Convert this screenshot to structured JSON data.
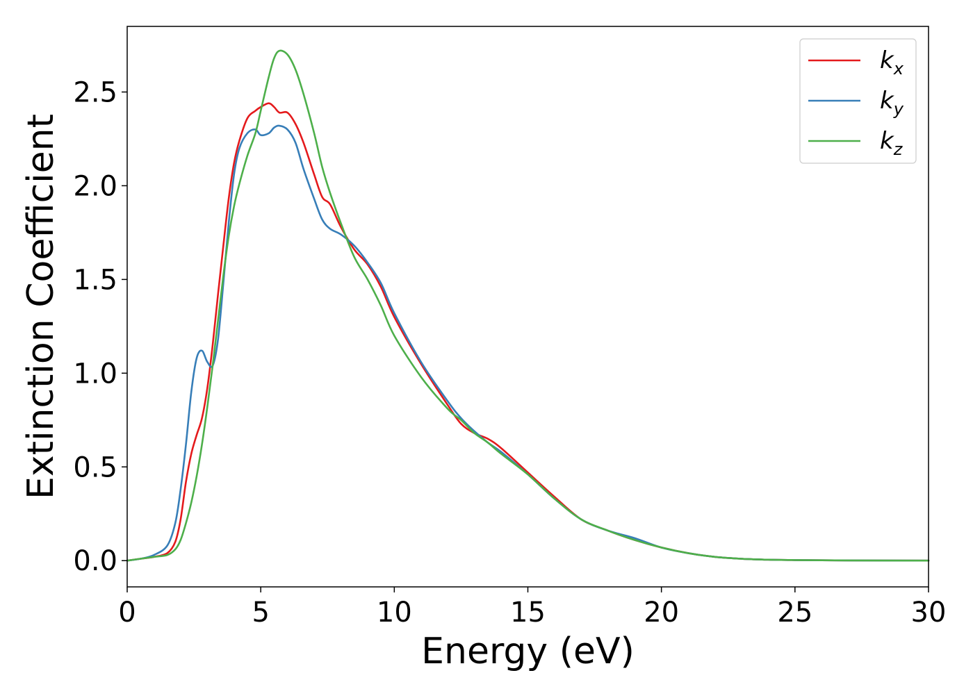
{
  "chart_data": {
    "type": "line",
    "xlabel": "Energy (eV)",
    "ylabel": "Extinction Coefficient",
    "xlim": [
      0,
      30
    ],
    "ylim": [
      -0.14,
      2.85
    ],
    "xticks": [
      0,
      5,
      10,
      15,
      20,
      25,
      30
    ],
    "yticks": [
      0.0,
      0.5,
      1.0,
      1.5,
      2.0,
      2.5
    ],
    "xtick_labels": [
      "0",
      "5",
      "10",
      "15",
      "20",
      "25",
      "30"
    ],
    "ytick_labels": [
      "0.0",
      "0.5",
      "1.0",
      "1.5",
      "2.0",
      "2.5"
    ],
    "grid": false,
    "legend": {
      "position": "top-right",
      "entries": [
        {
          "base": "k",
          "sub": "x"
        },
        {
          "base": "k",
          "sub": "y"
        },
        {
          "base": "k",
          "sub": "z"
        }
      ]
    },
    "series": [
      {
        "name": "k_x",
        "color": "#e41a1c",
        "x": [
          0,
          0.5,
          1.0,
          1.5,
          1.8,
          2.0,
          2.2,
          2.4,
          2.6,
          2.8,
          3.0,
          3.2,
          3.4,
          3.6,
          3.8,
          4.0,
          4.2,
          4.5,
          4.8,
          5.0,
          5.3,
          5.5,
          5.7,
          6.0,
          6.3,
          6.6,
          7.0,
          7.3,
          7.6,
          8.0,
          8.5,
          9.0,
          9.5,
          10.0,
          11.0,
          12.0,
          12.5,
          13.0,
          13.5,
          14.0,
          15.0,
          16.0,
          17.0,
          18.0,
          19.0,
          20.0,
          21.0,
          22.0,
          23.0,
          24.0,
          25.0,
          27.0,
          30.0
        ],
        "y": [
          0.0,
          0.01,
          0.02,
          0.04,
          0.1,
          0.22,
          0.42,
          0.57,
          0.67,
          0.76,
          0.92,
          1.15,
          1.42,
          1.68,
          1.93,
          2.12,
          2.24,
          2.36,
          2.4,
          2.42,
          2.44,
          2.42,
          2.39,
          2.39,
          2.33,
          2.23,
          2.06,
          1.94,
          1.9,
          1.78,
          1.66,
          1.58,
          1.46,
          1.3,
          1.05,
          0.83,
          0.73,
          0.68,
          0.65,
          0.6,
          0.47,
          0.34,
          0.22,
          0.16,
          0.11,
          0.07,
          0.04,
          0.02,
          0.01,
          0.005,
          0.003,
          0.001,
          0.0
        ]
      },
      {
        "name": "k_y",
        "color": "#377eb8",
        "x": [
          0,
          0.5,
          1.0,
          1.5,
          1.8,
          2.0,
          2.2,
          2.4,
          2.6,
          2.8,
          3.0,
          3.2,
          3.4,
          3.6,
          3.8,
          4.0,
          4.2,
          4.5,
          4.8,
          5.0,
          5.3,
          5.5,
          5.7,
          6.0,
          6.3,
          6.6,
          7.0,
          7.3,
          7.6,
          8.0,
          8.5,
          9.0,
          9.5,
          10.0,
          11.0,
          12.0,
          12.5,
          13.0,
          13.5,
          14.0,
          15.0,
          16.0,
          17.0,
          18.0,
          19.0,
          20.0,
          21.0,
          22.0,
          23.0,
          24.0,
          25.0,
          27.0,
          30.0
        ],
        "y": [
          0.0,
          0.01,
          0.03,
          0.08,
          0.2,
          0.38,
          0.62,
          0.9,
          1.08,
          1.12,
          1.06,
          1.04,
          1.18,
          1.48,
          1.8,
          2.06,
          2.2,
          2.28,
          2.3,
          2.27,
          2.28,
          2.31,
          2.32,
          2.3,
          2.23,
          2.09,
          1.93,
          1.82,
          1.77,
          1.74,
          1.68,
          1.59,
          1.48,
          1.32,
          1.06,
          0.85,
          0.76,
          0.69,
          0.63,
          0.58,
          0.46,
          0.33,
          0.22,
          0.16,
          0.12,
          0.07,
          0.04,
          0.02,
          0.01,
          0.005,
          0.003,
          0.001,
          0.0
        ]
      },
      {
        "name": "k_z",
        "color": "#4daf4a",
        "x": [
          0,
          0.5,
          1.0,
          1.5,
          1.8,
          2.0,
          2.2,
          2.4,
          2.6,
          2.8,
          3.0,
          3.2,
          3.4,
          3.6,
          3.8,
          4.0,
          4.2,
          4.5,
          4.8,
          5.0,
          5.3,
          5.5,
          5.7,
          6.0,
          6.3,
          6.6,
          7.0,
          7.3,
          7.6,
          8.0,
          8.5,
          9.0,
          9.5,
          10.0,
          11.0,
          12.0,
          12.5,
          13.0,
          13.5,
          14.0,
          15.0,
          16.0,
          17.0,
          18.0,
          19.0,
          20.0,
          21.0,
          22.0,
          23.0,
          24.0,
          25.0,
          27.0,
          30.0
        ],
        "y": [
          0.0,
          0.01,
          0.02,
          0.03,
          0.06,
          0.11,
          0.2,
          0.31,
          0.45,
          0.62,
          0.82,
          1.04,
          1.28,
          1.52,
          1.73,
          1.89,
          2.01,
          2.16,
          2.28,
          2.4,
          2.58,
          2.68,
          2.72,
          2.7,
          2.62,
          2.49,
          2.28,
          2.1,
          1.96,
          1.8,
          1.62,
          1.5,
          1.36,
          1.2,
          0.98,
          0.81,
          0.75,
          0.68,
          0.63,
          0.57,
          0.46,
          0.33,
          0.22,
          0.16,
          0.11,
          0.07,
          0.04,
          0.02,
          0.01,
          0.005,
          0.003,
          0.001,
          0.0
        ]
      }
    ]
  }
}
